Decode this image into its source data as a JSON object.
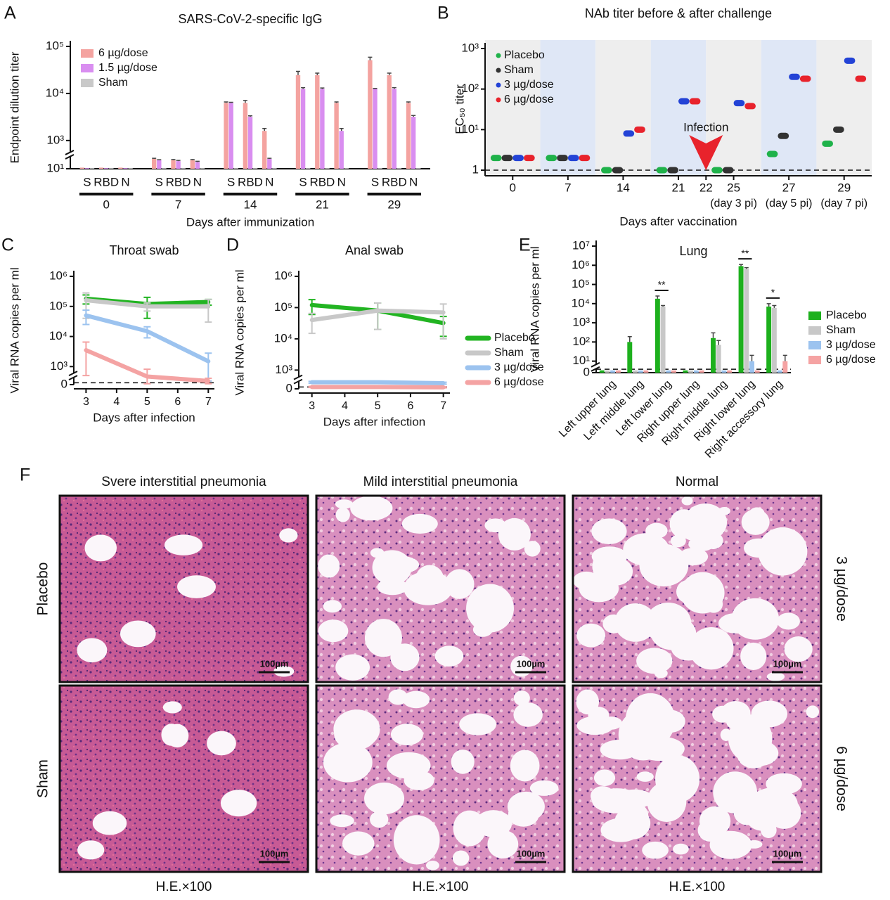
{
  "panel_labels": [
    "A",
    "B",
    "C",
    "D",
    "E",
    "F"
  ],
  "chart_data": [
    {
      "type": "bar",
      "title": "SARS-CoV-2-specific IgG",
      "y_label": "Endpoint dilution titer",
      "x_label": "Days after immunization",
      "groups": [
        "0",
        "7",
        "14",
        "21",
        "29"
      ],
      "categories": [
        "S",
        "RBD",
        "N",
        "S",
        "RBD",
        "N",
        "S",
        "RBD",
        "N",
        "S",
        "RBD",
        "N",
        "S",
        "RBD",
        "N"
      ],
      "log_scale": true,
      "ylim": [
        10,
        100000
      ],
      "axis_break": [
        10,
        1000
      ],
      "yticks": [
        {
          "value": 10,
          "label": "10¹"
        },
        {
          "value": 1000,
          "label": "10³"
        },
        {
          "value": 10000,
          "label": "10⁴"
        },
        {
          "value": 100000,
          "label": "10⁵"
        }
      ],
      "reference_line": 10,
      "legend": "upper left",
      "series": [
        {
          "name": "6 µg/dose",
          "color": "#f4a3a0",
          "values": [
            12,
            12,
            12,
            50,
            40,
            40,
            6300,
            6300,
            1600,
            24500,
            24500,
            6300,
            51000,
            24500,
            6300
          ],
          "errors": [
            0,
            0,
            0,
            5,
            5,
            5,
            300,
            800,
            200,
            5000,
            2500,
            300,
            8000,
            2500,
            300
          ]
        },
        {
          "name": "1.5 µg/dose",
          "color": "#d98ef0",
          "values": [
            11,
            11,
            11,
            40,
            35,
            30,
            6300,
            3200,
            50,
            12500,
            12500,
            1600,
            12500,
            12500,
            3200
          ],
          "errors": [
            0,
            0,
            0,
            4,
            4,
            4,
            200,
            150,
            5,
            800,
            600,
            200,
            300,
            800,
            200
          ]
        },
        {
          "name": "Sham",
          "color": "#c9c9c9",
          "values": [
            11,
            11,
            11,
            11,
            11,
            11,
            11,
            11,
            11,
            11,
            11,
            11,
            11,
            11,
            11
          ]
        }
      ]
    },
    {
      "type": "dot",
      "title": "NAb titer before & after challenge",
      "y_label": "EC₅₀ titer",
      "x_label": "Days after vaccination",
      "categories": [
        "0",
        "7",
        "14",
        "21",
        "22",
        "25",
        "27",
        "29"
      ],
      "category_notes": [
        null,
        null,
        null,
        null,
        null,
        "(day 3 pi)",
        "(day 5 pi)",
        "(day 7 pi)"
      ],
      "log_scale": true,
      "ylim": [
        1,
        1000
      ],
      "yticks": [
        1,
        {
          "value": 10,
          "label": "10¹"
        },
        {
          "value": 100,
          "label": "10²"
        },
        {
          "value": 1000,
          "label": "10³"
        }
      ],
      "reference_line": 1,
      "legend": "upper left",
      "annotations": [
        {
          "text": "Infection",
          "category": "22"
        }
      ],
      "series": [
        {
          "name": "Placebo",
          "color": "#1fb24a",
          "values": [
            2,
            2,
            1,
            1,
            null,
            1,
            2.5,
            4.5
          ]
        },
        {
          "name": "Sham",
          "color": "#333333",
          "values": [
            2,
            2,
            1,
            1,
            null,
            1,
            7,
            10
          ]
        },
        {
          "name": "3 µg/dose",
          "color": "#2343d6",
          "values": [
            2,
            2,
            8,
            50,
            null,
            45,
            200,
            500
          ]
        },
        {
          "name": "6 µg/dose",
          "color": "#e8232c",
          "values": [
            2,
            2,
            10,
            50,
            null,
            38,
            180,
            180
          ]
        }
      ]
    },
    {
      "type": "line",
      "title": "Throat swab",
      "y_label": "Viral RNA copies per ml",
      "x_label": "Days after infection",
      "x": [
        3,
        5,
        7
      ],
      "xlim": [
        2.6,
        7.2
      ],
      "xticks": [
        3,
        4,
        5,
        6,
        7
      ],
      "log_scale": true,
      "ylim": [
        0,
        1000000
      ],
      "axis_break": [
        0,
        1000
      ],
      "yticks": [
        0,
        {
          "value": 1000,
          "label": "10³"
        },
        {
          "value": 10000,
          "label": "10⁴"
        },
        {
          "value": 100000,
          "label": "10⁵"
        },
        {
          "value": 1000000,
          "label": "10⁶"
        }
      ],
      "reference_line": 100,
      "series": [
        {
          "color": "#22b422",
          "values": [
            180000,
            120000,
            140000
          ],
          "errors": [
            60000,
            80000,
            30000
          ]
        },
        {
          "color": "#c8c8c8",
          "values": [
            160000,
            100000,
            100000
          ],
          "errors": [
            120000,
            30000,
            70000
          ]
        },
        {
          "color": "#9cc3ef",
          "values": [
            50000,
            15000,
            1500
          ],
          "errors": [
            25000,
            6000,
            1300
          ]
        },
        {
          "color": "#f4a3a3",
          "values": [
            3500,
            450,
            200
          ],
          "errors": [
            3000,
            400,
            150
          ]
        }
      ]
    },
    {
      "type": "line",
      "title": "Anal swab",
      "y_label": "Viral RNA copies per ml",
      "x_label": "Days after infection",
      "x": [
        3,
        5,
        7
      ],
      "xlim": [
        2.6,
        7.2
      ],
      "xticks": [
        3,
        4,
        5,
        6,
        7
      ],
      "log_scale": true,
      "ylim": [
        0,
        1000000
      ],
      "axis_break": [
        0,
        1000
      ],
      "yticks": [
        0,
        {
          "value": 1000,
          "label": "10³"
        },
        {
          "value": 10000,
          "label": "10⁴"
        },
        {
          "value": 100000,
          "label": "10⁵"
        },
        {
          "value": 1000000,
          "label": "10⁶"
        }
      ],
      "reference_line": 100,
      "legend": "right",
      "series": [
        {
          "name": "Placebo",
          "color": "#22b422",
          "values": [
            120000,
            80000,
            32000
          ],
          "errors": [
            60000,
            60000,
            20000
          ]
        },
        {
          "name": "Sham",
          "color": "#c8c8c8",
          "values": [
            40000,
            80000,
            70000
          ],
          "errors": [
            25000,
            60000,
            60000
          ]
        },
        {
          "name": "3 µg/dose",
          "color": "#9cc3ef",
          "values": [
            350,
            350,
            300
          ],
          "errors": [
            50,
            50,
            50
          ]
        },
        {
          "name": "6 µg/dose",
          "color": "#f4a3a3",
          "values": [
            100,
            100,
            80
          ],
          "errors": [
            30,
            30,
            30
          ]
        }
      ]
    },
    {
      "type": "bar",
      "title": "Lung",
      "y_label": "Viral RNA copies per ml",
      "categories": [
        "Left upper lung",
        "Left middle lung",
        "Left lower lung",
        "Right upper lung",
        "Right middle lung",
        "Right lower lung",
        "Right accessory lung"
      ],
      "log_scale": true,
      "ylim": [
        0,
        10000000
      ],
      "axis_break": [
        0,
        10
      ],
      "yticks": [
        0,
        {
          "value": 10,
          "label": "10¹"
        },
        {
          "value": 100,
          "label": "10²"
        },
        {
          "value": 1000,
          "label": "10³"
        },
        {
          "value": 10000,
          "label": "10⁴"
        },
        {
          "value": 100000,
          "label": "10⁵"
        },
        {
          "value": 1000000,
          "label": "10⁶"
        },
        {
          "value": 10000000,
          "label": "10⁷"
        }
      ],
      "reference_line": 3,
      "legend": "right",
      "annotations": [
        {
          "text": "**",
          "category": "Left lower lung"
        },
        {
          "text": "**",
          "category": "Right lower lung"
        },
        {
          "text": "*",
          "category": "Right accessory lung"
        }
      ],
      "series": [
        {
          "name": "Placebo",
          "color": "#1db01d",
          "values": [
            2,
            100,
            18000,
            2,
            160,
            900000,
            7000
          ],
          "errors": [
            0,
            90,
            7000,
            0,
            140,
            200000,
            3000
          ]
        },
        {
          "name": "Sham",
          "color": "#c8c8c8",
          "values": [
            2,
            2,
            7000,
            2,
            70,
            650000,
            6000
          ],
          "errors": [
            0,
            0,
            1000,
            0,
            50,
            100000,
            2000
          ]
        },
        {
          "name": "3 µg/dose",
          "color": "#9cc3ef",
          "values": [
            2,
            2,
            2,
            2,
            2,
            10,
            2
          ],
          "errors": [
            0,
            0,
            0,
            0,
            0,
            10,
            0
          ]
        },
        {
          "name": "6 µg/dose",
          "color": "#f5a3a3",
          "values": [
            2,
            2,
            2,
            2,
            2,
            2,
            10
          ],
          "errors": [
            0,
            0,
            0,
            0,
            0,
            0,
            10
          ]
        }
      ]
    }
  ],
  "panel_f": {
    "columns": [
      "Svere interstitial pneumonia",
      "Mild interstitial pneumonia",
      "Normal"
    ],
    "rows_left": [
      "Placebo",
      "Sham"
    ],
    "rows_right": [
      "3 µg/dose",
      "6 µg/dose"
    ],
    "scale_bar": "100µm",
    "magnification": "H.E.×100"
  }
}
